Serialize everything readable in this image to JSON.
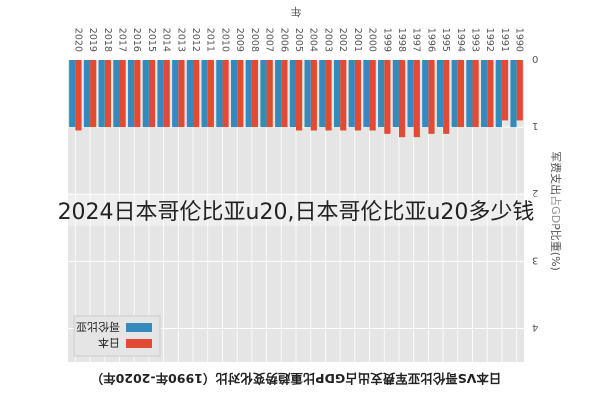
{
  "overlay_text": "2024日本哥伦比亚u20,日本哥伦比亚u20多少钱",
  "chart_data": {
    "type": "bar",
    "title": "日本VS哥伦比亚军费支出占GDP比重趋势变化对比（1990年-2020年）",
    "xlabel": "年",
    "ylabel": "军费支出占GDP比重(%)",
    "ylim": [
      0,
      4.5
    ],
    "yticks": [
      "0",
      "1",
      "2",
      "3",
      "4"
    ],
    "categories": [
      "1990",
      "1991",
      "1992",
      "1993",
      "1994",
      "1995",
      "1996",
      "1997",
      "1998",
      "1999",
      "2000",
      "2001",
      "2002",
      "2003",
      "2004",
      "2005",
      "2006",
      "2007",
      "2008",
      "2009",
      "2010",
      "2011",
      "2012",
      "2013",
      "2014",
      "2015",
      "2016",
      "2017",
      "2018",
      "2019",
      "2020"
    ],
    "series": [
      {
        "name": "日本",
        "color": "#e24a33",
        "values": [
          0.9,
          0.9,
          1.0,
          1.0,
          1.0,
          1.1,
          1.1,
          1.15,
          1.15,
          1.1,
          1.05,
          1.05,
          1.05,
          1.05,
          1.05,
          1.05,
          1.0,
          1.0,
          1.0,
          1.0,
          1.0,
          1.0,
          1.0,
          1.0,
          1.0,
          1.0,
          1.0,
          1.0,
          1.0,
          1.0,
          1.05
        ]
      },
      {
        "name": "哥伦比亚",
        "color": "#348abd",
        "values": [
          1.0,
          1.0,
          1.0,
          1.0,
          1.0,
          1.0,
          1.0,
          1.0,
          1.0,
          1.0,
          1.0,
          1.0,
          1.0,
          1.0,
          1.0,
          1.0,
          1.0,
          1.0,
          1.0,
          1.0,
          1.0,
          1.0,
          1.0,
          1.0,
          1.0,
          1.0,
          1.0,
          1.0,
          1.0,
          1.0,
          1.0
        ]
      }
    ],
    "grid": true,
    "legend_position": "top-right"
  }
}
